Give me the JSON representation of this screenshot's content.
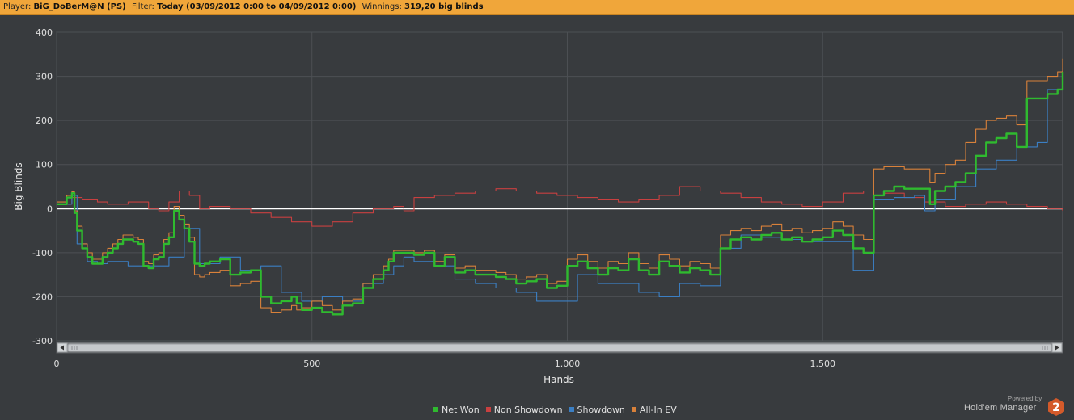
{
  "header": {
    "player_label": "Player:",
    "player_value": "BiG_DoBerM@N (PS)",
    "filter_label": "Filter:",
    "filter_value": "Today (03/09/2012 0:00 to 04/09/2012 0:00)",
    "winnings_label": "Winnings:",
    "winnings_value": "319,20 big blinds"
  },
  "brand": {
    "powered_by": "Powered by",
    "product": "Hold'em Manager",
    "version_badge": "2",
    "badge_color": "#d45a2a"
  },
  "colors": {
    "background": "#383b3e",
    "header": "#f0a63a",
    "net_won": "#2fba2f",
    "non_showdown": "#c84040",
    "showdown": "#3b7fc4",
    "all_in_ev": "#d9813a",
    "zero_line": "#ffffff"
  },
  "chart_data": {
    "type": "line",
    "xlabel": "Hands",
    "ylabel": "Big Blinds",
    "xlim": [
      0,
      1970
    ],
    "ylim": [
      -300,
      400
    ],
    "x_ticks": [
      0,
      500,
      1000,
      1500
    ],
    "x_tick_labels": [
      "0",
      "500",
      "1.000",
      "1.500"
    ],
    "y_ticks": [
      400,
      300,
      200,
      100,
      0,
      -100,
      -200,
      -300
    ],
    "y_tick_labels": [
      "400",
      "300",
      "200",
      "100",
      "0",
      "-100",
      "-200",
      "-300"
    ],
    "grid": true,
    "legend_position": "bottom",
    "series": [
      {
        "name": "Net Won",
        "color": "#2fba2f",
        "x": [
          0,
          20,
          30,
          35,
          40,
          50,
          60,
          70,
          90,
          100,
          110,
          120,
          130,
          140,
          150,
          160,
          170,
          180,
          190,
          200,
          210,
          220,
          230,
          240,
          250,
          260,
          270,
          280,
          290,
          300,
          320,
          340,
          360,
          380,
          400,
          420,
          440,
          460,
          470,
          480,
          500,
          520,
          540,
          560,
          580,
          600,
          620,
          640,
          650,
          660,
          680,
          700,
          720,
          740,
          760,
          780,
          800,
          820,
          840,
          860,
          880,
          900,
          920,
          940,
          960,
          980,
          1000,
          1020,
          1040,
          1060,
          1080,
          1100,
          1120,
          1140,
          1160,
          1180,
          1200,
          1220,
          1240,
          1260,
          1280,
          1300,
          1320,
          1340,
          1360,
          1380,
          1400,
          1420,
          1440,
          1460,
          1480,
          1500,
          1520,
          1540,
          1560,
          1580,
          1600,
          1620,
          1640,
          1660,
          1680,
          1700,
          1710,
          1720,
          1740,
          1760,
          1780,
          1800,
          1820,
          1840,
          1860,
          1880,
          1900,
          1920,
          1940,
          1960,
          1970
        ],
        "y": [
          10,
          25,
          35,
          -10,
          -50,
          -90,
          -110,
          -125,
          -110,
          -100,
          -90,
          -80,
          -70,
          -70,
          -75,
          -80,
          -130,
          -135,
          -115,
          -110,
          -80,
          -65,
          -5,
          -25,
          -45,
          -75,
          -125,
          -130,
          -125,
          -120,
          -115,
          -150,
          -145,
          -140,
          -200,
          -215,
          -210,
          -200,
          -215,
          -230,
          -225,
          -235,
          -240,
          -220,
          -215,
          -180,
          -160,
          -140,
          -120,
          -100,
          -100,
          -105,
          -100,
          -130,
          -110,
          -145,
          -140,
          -150,
          -150,
          -155,
          -160,
          -170,
          -165,
          -160,
          -180,
          -175,
          -130,
          -120,
          -135,
          -150,
          -135,
          -140,
          -115,
          -140,
          -150,
          -120,
          -130,
          -145,
          -135,
          -140,
          -150,
          -90,
          -70,
          -65,
          -70,
          -60,
          -55,
          -70,
          -65,
          -75,
          -70,
          -65,
          -50,
          -60,
          -90,
          -100,
          30,
          40,
          50,
          45,
          45,
          45,
          10,
          40,
          50,
          60,
          80,
          120,
          150,
          160,
          170,
          140,
          250,
          250,
          260,
          270,
          310
        ]
      },
      {
        "name": "Non Showdown",
        "color": "#c84040",
        "x": [
          0,
          30,
          50,
          80,
          100,
          140,
          180,
          200,
          220,
          240,
          260,
          280,
          300,
          340,
          380,
          420,
          460,
          500,
          540,
          580,
          620,
          660,
          680,
          700,
          740,
          780,
          820,
          860,
          900,
          940,
          980,
          1020,
          1060,
          1100,
          1140,
          1180,
          1220,
          1260,
          1300,
          1340,
          1380,
          1420,
          1460,
          1500,
          1540,
          1580,
          1620,
          1660,
          1700,
          1740,
          1780,
          1820,
          1860,
          1900,
          1940,
          1970
        ],
        "y": [
          10,
          25,
          20,
          15,
          10,
          15,
          0,
          -5,
          15,
          40,
          30,
          0,
          5,
          0,
          -10,
          -20,
          -30,
          -40,
          -30,
          -10,
          0,
          5,
          -5,
          25,
          30,
          35,
          40,
          45,
          40,
          35,
          30,
          25,
          20,
          15,
          20,
          30,
          50,
          40,
          35,
          25,
          15,
          10,
          5,
          15,
          35,
          40,
          35,
          25,
          15,
          5,
          10,
          15,
          10,
          5,
          0,
          -5
        ]
      },
      {
        "name": "Showdown",
        "color": "#3b7fc4",
        "x": [
          0,
          30,
          40,
          60,
          80,
          100,
          140,
          180,
          220,
          250,
          280,
          320,
          360,
          400,
          440,
          480,
          520,
          560,
          600,
          640,
          660,
          680,
          700,
          740,
          780,
          820,
          860,
          900,
          940,
          980,
          1020,
          1060,
          1100,
          1140,
          1180,
          1220,
          1260,
          1300,
          1340,
          1380,
          1420,
          1460,
          1500,
          1540,
          1560,
          1580,
          1600,
          1640,
          1680,
          1700,
          1720,
          1760,
          1800,
          1840,
          1880,
          1920,
          1940,
          1970
        ],
        "y": [
          10,
          30,
          -80,
          -120,
          -125,
          -120,
          -130,
          -130,
          -110,
          -45,
          -125,
          -110,
          -140,
          -130,
          -190,
          -210,
          -200,
          -210,
          -170,
          -150,
          -130,
          -110,
          -120,
          -130,
          -160,
          -170,
          -180,
          -190,
          -210,
          -210,
          -150,
          -170,
          -170,
          -190,
          -200,
          -170,
          -175,
          -90,
          -60,
          -65,
          -70,
          -75,
          -75,
          -75,
          -140,
          -140,
          20,
          25,
          30,
          -5,
          20,
          50,
          90,
          110,
          140,
          150,
          270,
          320
        ]
      },
      {
        "name": "All-In EV",
        "color": "#d9813a",
        "x": [
          0,
          20,
          30,
          35,
          40,
          50,
          60,
          70,
          90,
          100,
          110,
          120,
          130,
          140,
          150,
          160,
          170,
          180,
          190,
          200,
          210,
          220,
          230,
          240,
          250,
          260,
          270,
          280,
          290,
          300,
          320,
          340,
          360,
          380,
          400,
          420,
          440,
          460,
          470,
          480,
          500,
          520,
          540,
          560,
          580,
          600,
          620,
          640,
          650,
          660,
          680,
          700,
          720,
          740,
          760,
          780,
          800,
          820,
          840,
          860,
          880,
          900,
          920,
          940,
          960,
          980,
          1000,
          1020,
          1040,
          1060,
          1080,
          1100,
          1120,
          1140,
          1160,
          1180,
          1200,
          1220,
          1240,
          1260,
          1280,
          1300,
          1320,
          1340,
          1360,
          1380,
          1400,
          1420,
          1440,
          1460,
          1480,
          1500,
          1520,
          1540,
          1560,
          1580,
          1600,
          1620,
          1640,
          1660,
          1680,
          1700,
          1710,
          1720,
          1740,
          1760,
          1780,
          1800,
          1820,
          1840,
          1860,
          1880,
          1900,
          1920,
          1940,
          1960,
          1970
        ],
        "y": [
          15,
          30,
          38,
          -5,
          -40,
          -80,
          -100,
          -115,
          -100,
          -90,
          -80,
          -70,
          -60,
          -60,
          -65,
          -70,
          -120,
          -125,
          -105,
          -100,
          -70,
          -55,
          5,
          -15,
          -35,
          -65,
          -150,
          -155,
          -150,
          -145,
          -140,
          -175,
          -170,
          -165,
          -225,
          -235,
          -230,
          -220,
          -230,
          -225,
          -210,
          -220,
          -230,
          -210,
          -205,
          -170,
          -150,
          -130,
          -115,
          -95,
          -95,
          -100,
          -95,
          -120,
          -105,
          -135,
          -130,
          -140,
          -140,
          -145,
          -150,
          -160,
          -155,
          -150,
          -170,
          -165,
          -115,
          -105,
          -120,
          -135,
          -120,
          -125,
          -100,
          -125,
          -135,
          -105,
          -115,
          -130,
          -120,
          -125,
          -135,
          -60,
          -50,
          -45,
          -50,
          -40,
          -35,
          -50,
          -45,
          -55,
          -50,
          -45,
          -30,
          -40,
          -60,
          -70,
          90,
          95,
          95,
          90,
          90,
          90,
          60,
          80,
          100,
          110,
          150,
          180,
          200,
          205,
          210,
          190,
          290,
          290,
          300,
          310,
          340
        ]
      }
    ]
  }
}
